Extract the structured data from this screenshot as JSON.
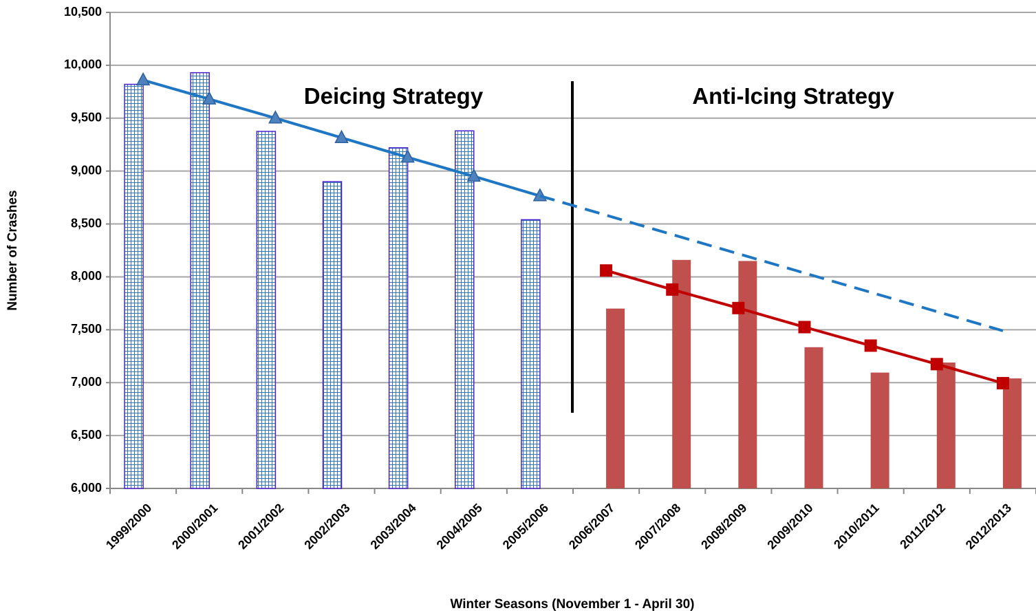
{
  "chart_data": {
    "type": "bar",
    "annotations": [
      "Deicing Strategy",
      "Anti-Icing Strategy"
    ],
    "xlabel": "Winter Seasons (November 1 - April 30)",
    "ylabel": "Number of Crashes",
    "categories": [
      "1999/2000",
      "2000/2001",
      "2001/2002",
      "2002/2003",
      "2003/2004",
      "2004/2005",
      "2005/2006",
      "2006/2007",
      "2007/2008",
      "2008/2009",
      "2009/2010",
      "2010/2011",
      "2011/2012",
      "2012/2013"
    ],
    "series": [
      {
        "type": "bar",
        "hatch": true,
        "color": "#2e75b6",
        "edge": "#4b20d0",
        "values": [
          9820,
          9930,
          9375,
          8900,
          9220,
          9380,
          8540,
          null,
          null,
          null,
          null,
          null,
          null,
          null
        ]
      },
      {
        "type": "bar",
        "hatch": false,
        "color": "#c0504d",
        "values": [
          null,
          null,
          null,
          null,
          null,
          null,
          null,
          7700,
          8160,
          8150,
          7335,
          7095,
          7190,
          7040
        ]
      },
      {
        "type": "line",
        "marker": "triangle",
        "color": "#1f77c4",
        "dashed": false,
        "values": [
          9860,
          9680,
          9500,
          9315,
          9130,
          8950,
          8765,
          null,
          null,
          null,
          null,
          null,
          null,
          null
        ]
      },
      {
        "type": "line",
        "marker": "none",
        "color": "#1f77c4",
        "dashed": true,
        "values": [
          null,
          null,
          null,
          null,
          null,
          null,
          8765,
          8583,
          8400,
          8218,
          8036,
          7854,
          7672,
          7490
        ]
      },
      {
        "type": "line",
        "marker": "square",
        "color": "#c00000",
        "dashed": false,
        "values": [
          null,
          null,
          null,
          null,
          null,
          null,
          null,
          8060,
          7880,
          7705,
          7525,
          7350,
          7175,
          6995
        ]
      }
    ],
    "ylim": [
      6000,
      10500
    ],
    "yticks": [
      {
        "value": 6000,
        "label": "6,000"
      },
      {
        "value": 6500,
        "label": "6,500"
      },
      {
        "value": 7000,
        "label": "7,000"
      },
      {
        "value": 7500,
        "label": "7,500"
      },
      {
        "value": 8000,
        "label": "8,000"
      },
      {
        "value": 8500,
        "label": "8,500"
      },
      {
        "value": 9000,
        "label": "9,000"
      },
      {
        "value": 9500,
        "label": "9,500"
      },
      {
        "value": 10000,
        "label": "10,000"
      },
      {
        "value": 10500,
        "label": "10,500"
      }
    ],
    "grid": true
  }
}
